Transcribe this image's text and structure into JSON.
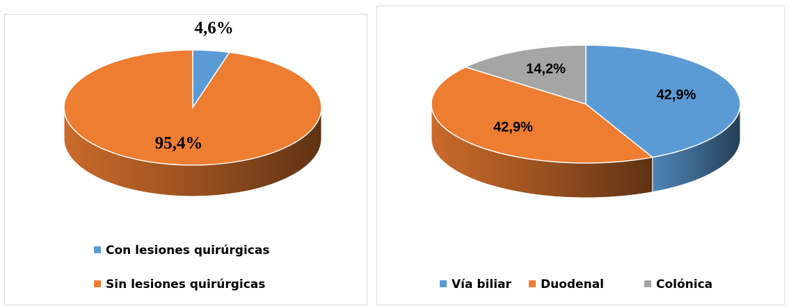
{
  "chart_data": [
    {
      "type": "pie",
      "categories": [
        "Con lesiones quirúrgicas",
        "Sin lesiones quirúrgicas"
      ],
      "values": [
        4.6,
        95.4
      ],
      "value_labels": [
        "4,6%",
        "95,4%"
      ],
      "colors": [
        "#5b9bd5",
        "#ed7d31"
      ],
      "legend": "bottom"
    },
    {
      "type": "pie",
      "categories": [
        "Vía biliar",
        "Duodenal",
        "Colónica"
      ],
      "values": [
        42.9,
        42.9,
        14.2
      ],
      "value_labels": [
        "42,9%",
        "42,9%",
        "14,2%"
      ],
      "colors": [
        "#5b9bd5",
        "#ed7d31",
        "#a5a5a5"
      ],
      "legend": "bottom"
    }
  ]
}
